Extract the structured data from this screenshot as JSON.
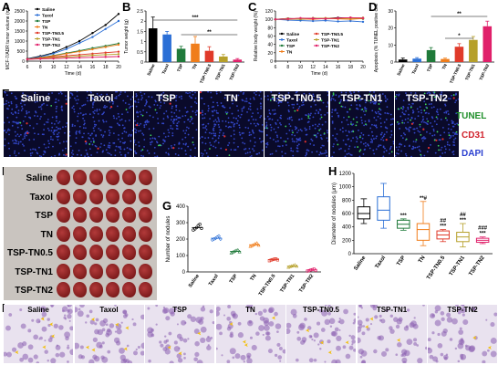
{
  "panels": {
    "A": "A",
    "B": "B",
    "C": "C",
    "D": "D",
    "E": "E",
    "F": "F",
    "G": "G",
    "H": "H",
    "I": "I"
  },
  "groups": [
    "Saline",
    "Taxol",
    "TSP",
    "TN",
    "TSP-TN0.5",
    "TSP-TN1",
    "TSP-TN2"
  ],
  "colors": {
    "Saline": "#000000",
    "Taxol": "#2b6fd6",
    "TSP": "#1f7a3a",
    "TN": "#f07d1a",
    "TSP-TN0.5": "#e03a2a",
    "TSP-TN1": "#b6a02a",
    "TSP-TN2": "#e0206a"
  },
  "legend": {
    "A": [
      "Saline",
      "Taxol",
      "TSP",
      "TN",
      "TSP-TN0.5",
      "TSP-TN1",
      "TSP-TN2"
    ],
    "C": [
      "Saline",
      "Taxol",
      "TSP",
      "TN",
      "TSP-TN0.5",
      "TSP-TN1",
      "TSP-TN2"
    ]
  },
  "panel_E": {
    "row_labels": [
      "Saline",
      "Taxol",
      "TSP",
      "TN",
      "TSP-TN0.5",
      "TSP-TN1",
      "TSP-TN2"
    ],
    "stain_labels": {
      "tunel": "TUNEL",
      "cd31": "CD31",
      "dapi": "DAPI"
    },
    "stain_colors": {
      "tunel": "#1f8f2a",
      "cd31": "#d0202a",
      "dapi": "#2a3fd0"
    }
  },
  "panel_F": {
    "row_labels": [
      "Saline",
      "Taxol",
      "TSP",
      "TN",
      "TSP-TN0.5",
      "TSP-TN1",
      "TSP-TN2"
    ]
  },
  "panel_I": {
    "labels": [
      "Saline",
      "Taxol",
      "TSP",
      "TN",
      "TSP-TN0.5",
      "TSP-TN1",
      "TSP-TN2"
    ]
  },
  "chart_data": [
    {
      "id": "A",
      "type": "line",
      "ylabel": "MCF-7/ADR tumor volume (mm³)",
      "xlabel": "Time (d)",
      "x": [
        6,
        8,
        10,
        12,
        14,
        16,
        18,
        20
      ],
      "xlim": [
        6,
        20
      ],
      "ylim": [
        0,
        2500
      ],
      "yticks": [
        0,
        500,
        1000,
        1500,
        2000,
        2500
      ],
      "xticks": [
        6,
        8,
        10,
        12,
        14,
        16,
        18,
        20
      ],
      "series": [
        {
          "name": "Saline",
          "values": [
            120,
            250,
            420,
            700,
            1000,
            1400,
            1800,
            2350
          ]
        },
        {
          "name": "Taxol",
          "values": [
            110,
            220,
            380,
            600,
            900,
            1200,
            1600,
            2000
          ]
        },
        {
          "name": "TSP",
          "values": [
            100,
            180,
            280,
            400,
            520,
            650,
            760,
            880
          ]
        },
        {
          "name": "TN",
          "values": [
            100,
            170,
            260,
            370,
            480,
            590,
            700,
            820
          ]
        },
        {
          "name": "TSP-TN0.5",
          "values": [
            100,
            150,
            210,
            270,
            320,
            370,
            420,
            470
          ]
        },
        {
          "name": "TSP-TN1",
          "values": [
            90,
            130,
            170,
            210,
            250,
            290,
            320,
            350
          ]
        },
        {
          "name": "TSP-TN2",
          "values": [
            90,
            110,
            130,
            150,
            170,
            190,
            210,
            230
          ]
        }
      ]
    },
    {
      "id": "B",
      "type": "bar",
      "ylabel": "Tumor weight (g)",
      "categories": [
        "Saline",
        "Taxol",
        "TSP",
        "TN",
        "TSP-TN0.5",
        "TSP-TN1",
        "TSP-TN2"
      ],
      "values": [
        1.65,
        1.35,
        0.65,
        0.9,
        0.55,
        0.27,
        0.12
      ],
      "errors": [
        0.55,
        0.15,
        0.12,
        0.35,
        0.2,
        0.1,
        0.05
      ],
      "ylim": [
        0,
        2.5
      ],
      "yticks": [
        0.0,
        0.5,
        1.0,
        1.5,
        2.0,
        2.5
      ],
      "annotations": [
        {
          "from": "Saline",
          "to": "TSP-TN2",
          "label": "***"
        },
        {
          "from": "TSP",
          "to": "TSP-TN2",
          "label": "**"
        }
      ]
    },
    {
      "id": "C",
      "type": "line",
      "ylabel": "Relative body weight (%)",
      "xlabel": "Time (d)",
      "x": [
        6,
        8,
        10,
        12,
        14,
        16,
        18,
        20
      ],
      "xlim": [
        6,
        20
      ],
      "ylim": [
        0,
        120
      ],
      "yticks": [
        0,
        20,
        40,
        60,
        80,
        100,
        120
      ],
      "xticks": [
        6,
        8,
        10,
        12,
        14,
        16,
        18,
        20
      ],
      "series": [
        {
          "name": "Saline",
          "values": [
            100,
            102,
            101,
            103,
            102,
            104,
            103,
            102
          ]
        },
        {
          "name": "Taxol",
          "values": [
            100,
            98,
            97,
            96,
            97,
            95,
            96,
            94
          ]
        },
        {
          "name": "TSP",
          "values": [
            100,
            101,
            100,
            102,
            101,
            102,
            103,
            101
          ]
        },
        {
          "name": "TN",
          "values": [
            100,
            100,
            101,
            100,
            102,
            101,
            100,
            102
          ]
        },
        {
          "name": "TSP-TN0.5",
          "values": [
            100,
            101,
            102,
            101,
            103,
            102,
            104,
            103
          ]
        },
        {
          "name": "TSP-TN1",
          "values": [
            100,
            102,
            101,
            103,
            102,
            103,
            102,
            104
          ]
        },
        {
          "name": "TSP-TN2",
          "values": [
            100,
            101,
            103,
            102,
            101,
            103,
            104,
            103
          ]
        }
      ]
    },
    {
      "id": "D",
      "type": "bar",
      "ylabel": "Apoptosis (% TUNEL positive cells)",
      "categories": [
        "Saline",
        "Taxol",
        "TSP",
        "TN",
        "TSP-TN0.5",
        "TSP-TN1",
        "TSP-TN2"
      ],
      "values": [
        1.5,
        2.0,
        7.0,
        1.8,
        9.0,
        13.0,
        21.0
      ],
      "errors": [
        0.8,
        0.6,
        1.5,
        0.5,
        1.8,
        2.0,
        3.0
      ],
      "ylim": [
        0,
        30
      ],
      "yticks": [
        0,
        10,
        20,
        30
      ],
      "annotations": [
        {
          "from": "TSP",
          "to": "TSP-TN2",
          "label": "**"
        },
        {
          "from": "TN",
          "to": "TSP-TN1",
          "label": "*"
        }
      ]
    },
    {
      "id": "G",
      "type": "scatter",
      "ylabel": "Number of nodules",
      "categories": [
        "Saline",
        "Taxol",
        "TSP",
        "TN",
        "TSP-TN0.5",
        "TSP-TN1",
        "TSP-TN2"
      ],
      "means": [
        270,
        205,
        125,
        165,
        75,
        35,
        12
      ],
      "points": [
        [
          255,
          262,
          270,
          282,
          290,
          265
        ],
        [
          195,
          200,
          205,
          212,
          218,
          200
        ],
        [
          115,
          120,
          126,
          130,
          133,
          122
        ],
        [
          155,
          160,
          165,
          170,
          175,
          162
        ],
        [
          68,
          72,
          75,
          78,
          80,
          73
        ],
        [
          28,
          32,
          35,
          38,
          42,
          34
        ],
        [
          5,
          8,
          12,
          14,
          18,
          10
        ]
      ],
      "ylim": [
        0,
        400
      ],
      "yticks": [
        0,
        100,
        200,
        300,
        400
      ]
    },
    {
      "id": "H",
      "type": "box",
      "ylabel": "Diameter of nodules (μm)",
      "categories": [
        "Saline",
        "Taxol",
        "TSP",
        "TN",
        "TSP-TN0.5",
        "TSP-TN1",
        "TSP-TN2"
      ],
      "boxes": [
        {
          "min": 450,
          "q1": 520,
          "median": 600,
          "q3": 700,
          "max": 820
        },
        {
          "min": 380,
          "q1": 500,
          "median": 650,
          "q3": 850,
          "max": 1050
        },
        {
          "min": 350,
          "q1": 380,
          "median": 440,
          "q3": 500,
          "max": 520
        },
        {
          "min": 120,
          "q1": 200,
          "median": 360,
          "q3": 450,
          "max": 780
        },
        {
          "min": 180,
          "q1": 220,
          "median": 280,
          "q3": 340,
          "max": 360
        },
        {
          "min": 100,
          "q1": 180,
          "median": 250,
          "q3": 320,
          "max": 450
        },
        {
          "min": 150,
          "q1": 170,
          "median": 200,
          "q3": 230,
          "max": 250
        }
      ],
      "sig_labels": [
        "",
        "",
        "***",
        "**#",
        "##\n***",
        "##\n***",
        "###\n***"
      ],
      "ylim": [
        0,
        1200
      ],
      "yticks": [
        0,
        200,
        400,
        600,
        800,
        1000,
        1200
      ]
    }
  ]
}
